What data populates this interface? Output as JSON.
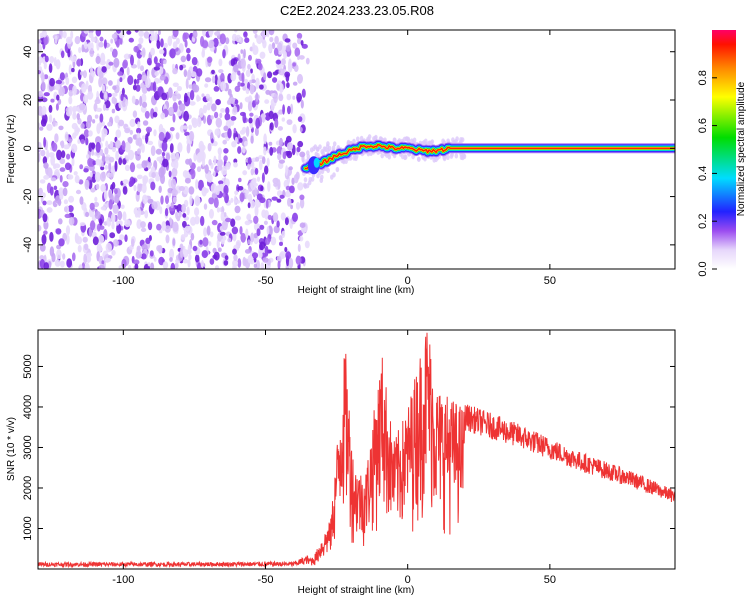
{
  "page_title": "C2E2.2024.233.23.05.R08",
  "chart_data": [
    {
      "type": "heatmap",
      "title": "C2E2.2024.233.23.05.R08",
      "xlabel": "Height of straight line (km)",
      "ylabel": "Frequency (Hz)",
      "xlim": [
        -130,
        94
      ],
      "ylim": [
        -50,
        49
      ],
      "x_ticks": [
        -100,
        -50,
        0,
        50
      ],
      "y_ticks": [
        -40,
        -20,
        0,
        20,
        40
      ],
      "colorbar": {
        "label": "Normalized spectral amplitude",
        "range": [
          0,
          1
        ],
        "ticks": [
          0.0,
          0.2,
          0.4,
          0.6,
          0.8
        ],
        "colormap": [
          "#ffffff",
          "#d7b8f5",
          "#7b1fe0",
          "#2233ff",
          "#00e5ff",
          "#00e000",
          "#ffff00",
          "#ff7f00",
          "#ff0000",
          "#ff0055"
        ]
      },
      "noise_region_x": [
        -130,
        -35
      ],
      "signal_ridge": [
        {
          "x": -35,
          "y": -8
        },
        {
          "x": -30,
          "y": -6
        },
        {
          "x": -25,
          "y": -3
        },
        {
          "x": -20,
          "y": -1
        },
        {
          "x": -15,
          "y": 1
        },
        {
          "x": -10,
          "y": 1
        },
        {
          "x": -5,
          "y": 0
        },
        {
          "x": 0,
          "y": 0
        },
        {
          "x": 5,
          "y": -1
        },
        {
          "x": 10,
          "y": -1
        },
        {
          "x": 15,
          "y": 0
        },
        {
          "x": 20,
          "y": 0
        },
        {
          "x": 50,
          "y": 0
        },
        {
          "x": 94,
          "y": 0
        }
      ],
      "grid": false
    },
    {
      "type": "line",
      "xlabel": "Height of straight line (km)",
      "ylabel": "SNR (10 * v/v)",
      "xlim": [
        -130,
        94
      ],
      "ylim": [
        0,
        5900
      ],
      "x_ticks": [
        -100,
        -50,
        0,
        50
      ],
      "y_ticks": [
        1000,
        2000,
        3000,
        4000,
        5000
      ],
      "color": "#ee3333",
      "envelope": [
        {
          "x": -130,
          "y": 120
        },
        {
          "x": -80,
          "y": 120
        },
        {
          "x": -40,
          "y": 130
        },
        {
          "x": -33,
          "y": 300
        },
        {
          "x": -27,
          "y": 1200
        },
        {
          "x": -22,
          "y": 5300
        },
        {
          "x": -19,
          "y": 2500
        },
        {
          "x": -15,
          "y": 2200
        },
        {
          "x": -9,
          "y": 5100
        },
        {
          "x": -5,
          "y": 3000
        },
        {
          "x": 0,
          "y": 3800
        },
        {
          "x": 7,
          "y": 5900
        },
        {
          "x": 10,
          "y": 4300
        },
        {
          "x": 20,
          "y": 3800
        },
        {
          "x": 40,
          "y": 3300
        },
        {
          "x": 60,
          "y": 2700
        },
        {
          "x": 80,
          "y": 2200
        },
        {
          "x": 94,
          "y": 1800
        }
      ],
      "grid": false
    }
  ]
}
